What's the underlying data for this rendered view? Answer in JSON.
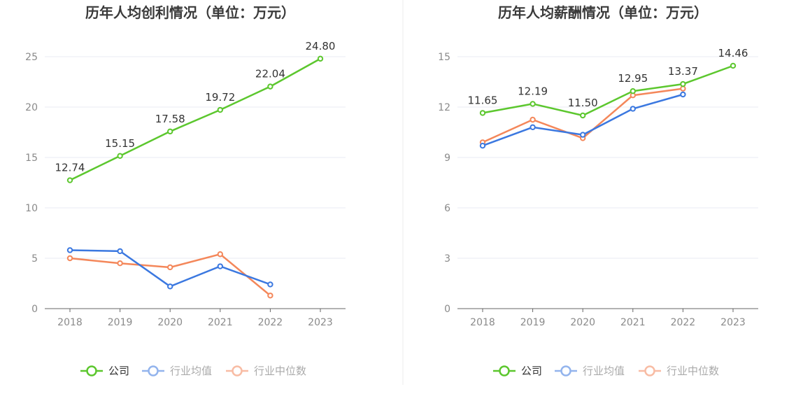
{
  "colors": {
    "company": "#5cc72e",
    "industry_avg": "#3b78e0",
    "industry_median": "#f4875a",
    "grid": "#e8ebf3",
    "axis": "#666666",
    "tick_text": "#8a8a8a",
    "label_text": "#333333",
    "title_text": "#3a3a3a",
    "divider": "#eeeeee"
  },
  "chart_data": [
    {
      "type": "line",
      "title": "历年人均创利情况（单位：万元）",
      "xlabel": "",
      "ylabel": "",
      "categories": [
        "2018",
        "2019",
        "2020",
        "2021",
        "2022",
        "2023"
      ],
      "ylim": [
        0,
        25
      ],
      "yticks": [
        0,
        5,
        10,
        15,
        20,
        25
      ],
      "ytick_labels": [
        "0",
        "5",
        "10",
        "15",
        "20",
        "25"
      ],
      "grid": true,
      "legend": "bottom-center",
      "series": [
        {
          "name": "公司",
          "key": "company",
          "values": [
            12.74,
            15.15,
            17.58,
            19.72,
            22.04,
            24.8
          ],
          "labels": [
            "12.74",
            "15.15",
            "17.58",
            "19.72",
            "22.04",
            "24.80"
          ]
        },
        {
          "name": "行业均值",
          "key": "industry_avg",
          "values": [
            5.8,
            5.7,
            2.2,
            4.2,
            2.4,
            null
          ],
          "labels": null
        },
        {
          "name": "行业中位数",
          "key": "industry_median",
          "values": [
            5.0,
            4.5,
            4.1,
            5.4,
            1.3,
            null
          ],
          "labels": null
        }
      ]
    },
    {
      "type": "line",
      "title": "历年人均薪酬情况（单位：万元）",
      "xlabel": "",
      "ylabel": "",
      "categories": [
        "2018",
        "2019",
        "2020",
        "2021",
        "2022",
        "2023"
      ],
      "ylim": [
        0,
        15
      ],
      "yticks": [
        0,
        3,
        6,
        9,
        12,
        15
      ],
      "ytick_labels": [
        "0",
        "3",
        "6",
        "9",
        "12",
        "15"
      ],
      "grid": true,
      "legend": "bottom-center",
      "series": [
        {
          "name": "公司",
          "key": "company",
          "values": [
            11.65,
            12.19,
            11.5,
            12.95,
            13.37,
            14.46
          ],
          "labels": [
            "11.65",
            "12.19",
            "11.50",
            "12.95",
            "13.37",
            "14.46"
          ]
        },
        {
          "name": "行业均值",
          "key": "industry_avg",
          "values": [
            9.7,
            10.8,
            10.35,
            11.9,
            12.75,
            null
          ],
          "labels": null
        },
        {
          "name": "行业中位数",
          "key": "industry_median",
          "values": [
            9.9,
            11.25,
            10.15,
            12.7,
            13.1,
            null
          ],
          "labels": null
        }
      ]
    }
  ]
}
